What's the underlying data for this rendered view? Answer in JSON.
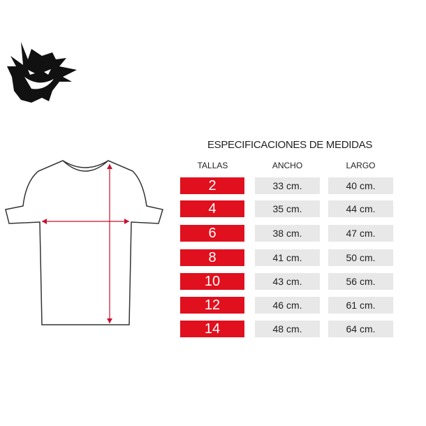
{
  "logo": {
    "name": "ghost-mascot-logo"
  },
  "table": {
    "title": "ESPECIFICACIONES DE MEDIDAS",
    "headers": {
      "tallas": "TALLAS",
      "ancho": "ANCHO",
      "largo": "LARGO"
    },
    "rows": [
      {
        "talla": "2",
        "ancho": "33 cm.",
        "largo": "40 cm."
      },
      {
        "talla": "4",
        "ancho": "35 cm.",
        "largo": "44 cm."
      },
      {
        "talla": "6",
        "ancho": "38 cm.",
        "largo": "47 cm."
      },
      {
        "talla": "8",
        "ancho": "41 cm.",
        "largo": "50 cm."
      },
      {
        "talla": "10",
        "ancho": "43 cm.",
        "largo": "56 cm."
      },
      {
        "talla": "12",
        "ancho": "46 cm.",
        "largo": "61 cm."
      },
      {
        "talla": "14",
        "ancho": "48 cm.",
        "largo": "64 cm."
      }
    ]
  },
  "colors": {
    "accent": "#e0101e",
    "cell": "#e8e8e8"
  }
}
